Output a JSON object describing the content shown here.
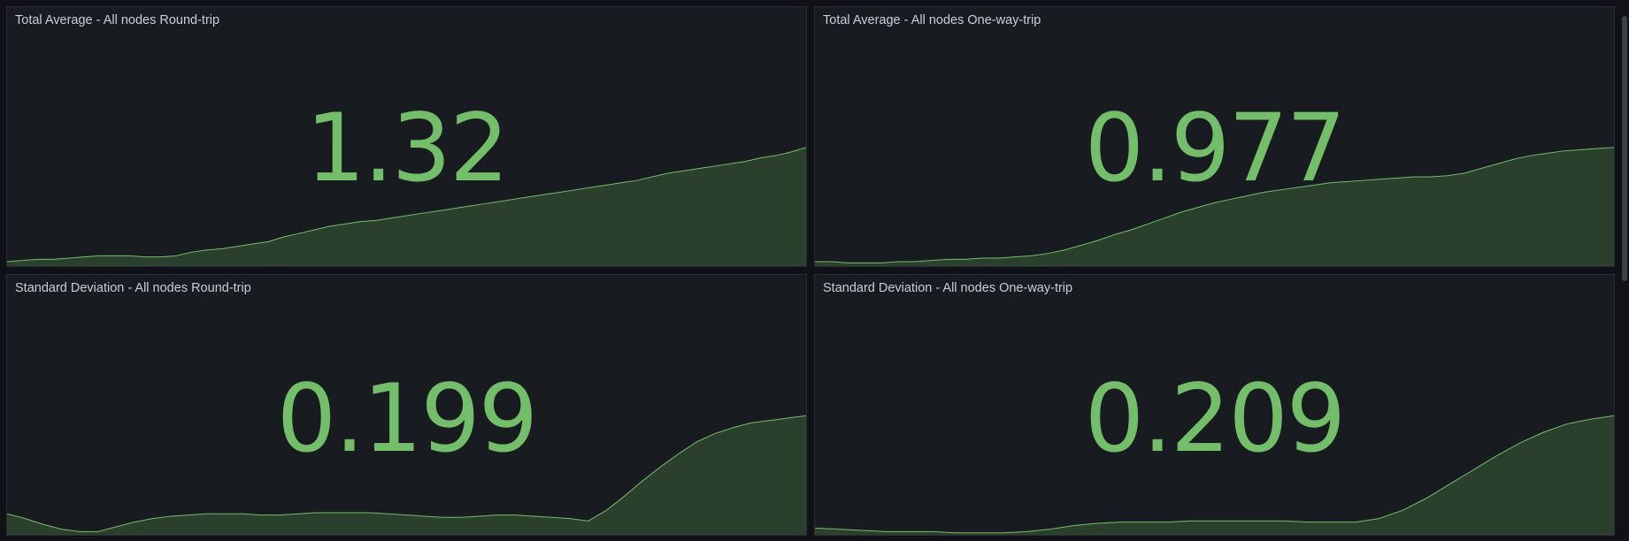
{
  "panels": [
    {
      "title": "Total Average - All nodes Round-trip",
      "value": "1.32",
      "sparkline": [
        0.03,
        0.04,
        0.05,
        0.05,
        0.06,
        0.07,
        0.08,
        0.08,
        0.08,
        0.07,
        0.07,
        0.08,
        0.11,
        0.13,
        0.14,
        0.16,
        0.18,
        0.2,
        0.24,
        0.27,
        0.3,
        0.33,
        0.35,
        0.37,
        0.38,
        0.4,
        0.42,
        0.44,
        0.46,
        0.48,
        0.5,
        0.52,
        0.54,
        0.56,
        0.58,
        0.6,
        0.62,
        0.64,
        0.66,
        0.68,
        0.7,
        0.72,
        0.75,
        0.78,
        0.8,
        0.82,
        0.84,
        0.86,
        0.88,
        0.91,
        0.93,
        0.96,
        1.0
      ]
    },
    {
      "title": "Total Average - All nodes One-way-trip",
      "value": "0.977",
      "sparkline": [
        0.03,
        0.03,
        0.02,
        0.02,
        0.02,
        0.03,
        0.03,
        0.04,
        0.05,
        0.05,
        0.06,
        0.06,
        0.07,
        0.08,
        0.1,
        0.13,
        0.17,
        0.21,
        0.26,
        0.3,
        0.35,
        0.4,
        0.45,
        0.49,
        0.53,
        0.56,
        0.59,
        0.62,
        0.64,
        0.66,
        0.68,
        0.7,
        0.71,
        0.72,
        0.73,
        0.74,
        0.75,
        0.75,
        0.76,
        0.78,
        0.82,
        0.86,
        0.9,
        0.93,
        0.95,
        0.97,
        0.98,
        0.99,
        1.0
      ]
    },
    {
      "title": "Standard Deviation - All nodes Round-trip",
      "value": "0.199",
      "sparkline": [
        0.17,
        0.13,
        0.08,
        0.04,
        0.02,
        0.02,
        0.06,
        0.1,
        0.13,
        0.15,
        0.16,
        0.17,
        0.17,
        0.17,
        0.16,
        0.16,
        0.17,
        0.18,
        0.18,
        0.18,
        0.18,
        0.17,
        0.16,
        0.15,
        0.14,
        0.14,
        0.15,
        0.16,
        0.16,
        0.15,
        0.14,
        0.13,
        0.11,
        0.2,
        0.32,
        0.45,
        0.57,
        0.68,
        0.78,
        0.85,
        0.9,
        0.94,
        0.96,
        0.98,
        1.0
      ]
    },
    {
      "title": "Standard Deviation - All nodes One-way-trip",
      "value": "0.209",
      "sparkline": [
        0.05,
        0.04,
        0.03,
        0.02,
        0.02,
        0.02,
        0.01,
        0.01,
        0.01,
        0.02,
        0.04,
        0.07,
        0.09,
        0.1,
        0.1,
        0.1,
        0.11,
        0.11,
        0.11,
        0.11,
        0.11,
        0.1,
        0.1,
        0.1,
        0.13,
        0.2,
        0.3,
        0.42,
        0.54,
        0.66,
        0.77,
        0.86,
        0.93,
        0.97,
        1.0
      ]
    }
  ],
  "colors": {
    "value": "#73bf69",
    "area_fill": "#2a3f2c",
    "line": "#73bf69",
    "panel_bg": "#181b1f",
    "page_bg": "#111217",
    "title": "#ccccdc"
  }
}
